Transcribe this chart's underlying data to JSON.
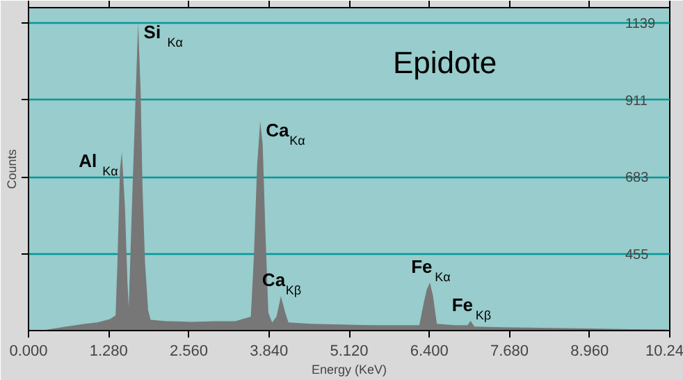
{
  "chart_data": {
    "type": "area",
    "title": "Epidote",
    "xlabel": "Energy (KeV)",
    "ylabel": "Counts",
    "x": [
      0.2,
      0.34,
      0.6,
      0.9,
      1.1,
      1.3,
      1.39,
      1.42,
      1.46,
      1.49,
      1.54,
      1.58,
      1.6,
      1.66,
      1.71,
      1.75,
      1.79,
      1.82,
      1.86,
      1.91,
      1.95,
      2.2,
      2.6,
      3.0,
      3.3,
      3.55,
      3.6,
      3.65,
      3.7,
      3.74,
      3.78,
      3.83,
      3.89,
      3.96,
      4.03,
      4.1,
      4.15,
      4.5,
      5.0,
      5.5,
      6.0,
      6.24,
      6.31,
      6.36,
      6.41,
      6.46,
      6.52,
      6.8,
      7.01,
      7.06,
      7.12,
      7.6,
      8.2,
      9.0,
      9.6,
      10.2
    ],
    "values": [
      228,
      232,
      240,
      248,
      252,
      262,
      273,
      431,
      704,
      757,
      594,
      370,
      297,
      643,
      920,
      1139,
      940,
      655,
      431,
      289,
      260,
      256,
      254,
      256,
      256,
      269,
      452,
      716,
      848,
      777,
      533,
      281,
      252,
      269,
      330,
      281,
      252,
      248,
      246,
      244,
      244,
      244,
      309,
      350,
      370,
      330,
      248,
      244,
      244,
      257,
      240,
      238,
      236,
      234,
      232,
      231
    ],
    "color": "#777777",
    "xlim": [
      0,
      10.24
    ],
    "ylim": [
      228,
      1184
    ],
    "xticks": [
      {
        "value": 0,
        "label": "0.000"
      },
      {
        "value": 1.28,
        "label": "1.280"
      },
      {
        "value": 2.56,
        "label": "2.560"
      },
      {
        "value": 3.84,
        "label": "3.840"
      },
      {
        "value": 5.12,
        "label": "5.120"
      },
      {
        "value": 6.4,
        "label": "6.400"
      },
      {
        "value": 7.68,
        "label": "7.680"
      },
      {
        "value": 8.96,
        "label": "8.960"
      },
      10.24
    ],
    "yticks": [
      455,
      683,
      911,
      1139
    ],
    "grid": "y",
    "annotations": [
      {
        "text": "Al$_{Kα}$",
        "x": 1.49,
        "y": 757
      },
      {
        "text": "Si$_{Kα}$",
        "x": 1.75,
        "y": 1139
      },
      {
        "text": "Ca$_{Kα}$",
        "x": 3.7,
        "y": 848
      },
      {
        "text": "Ca$_{Kβ}$",
        "x": 4.03,
        "y": 330
      },
      {
        "text": "Fe$_{Kα}$",
        "x": 6.41,
        "y": 370
      },
      {
        "text": "Fe$_{Kβ}$",
        "x": 7.06,
        "y": 257
      }
    ]
  }
}
